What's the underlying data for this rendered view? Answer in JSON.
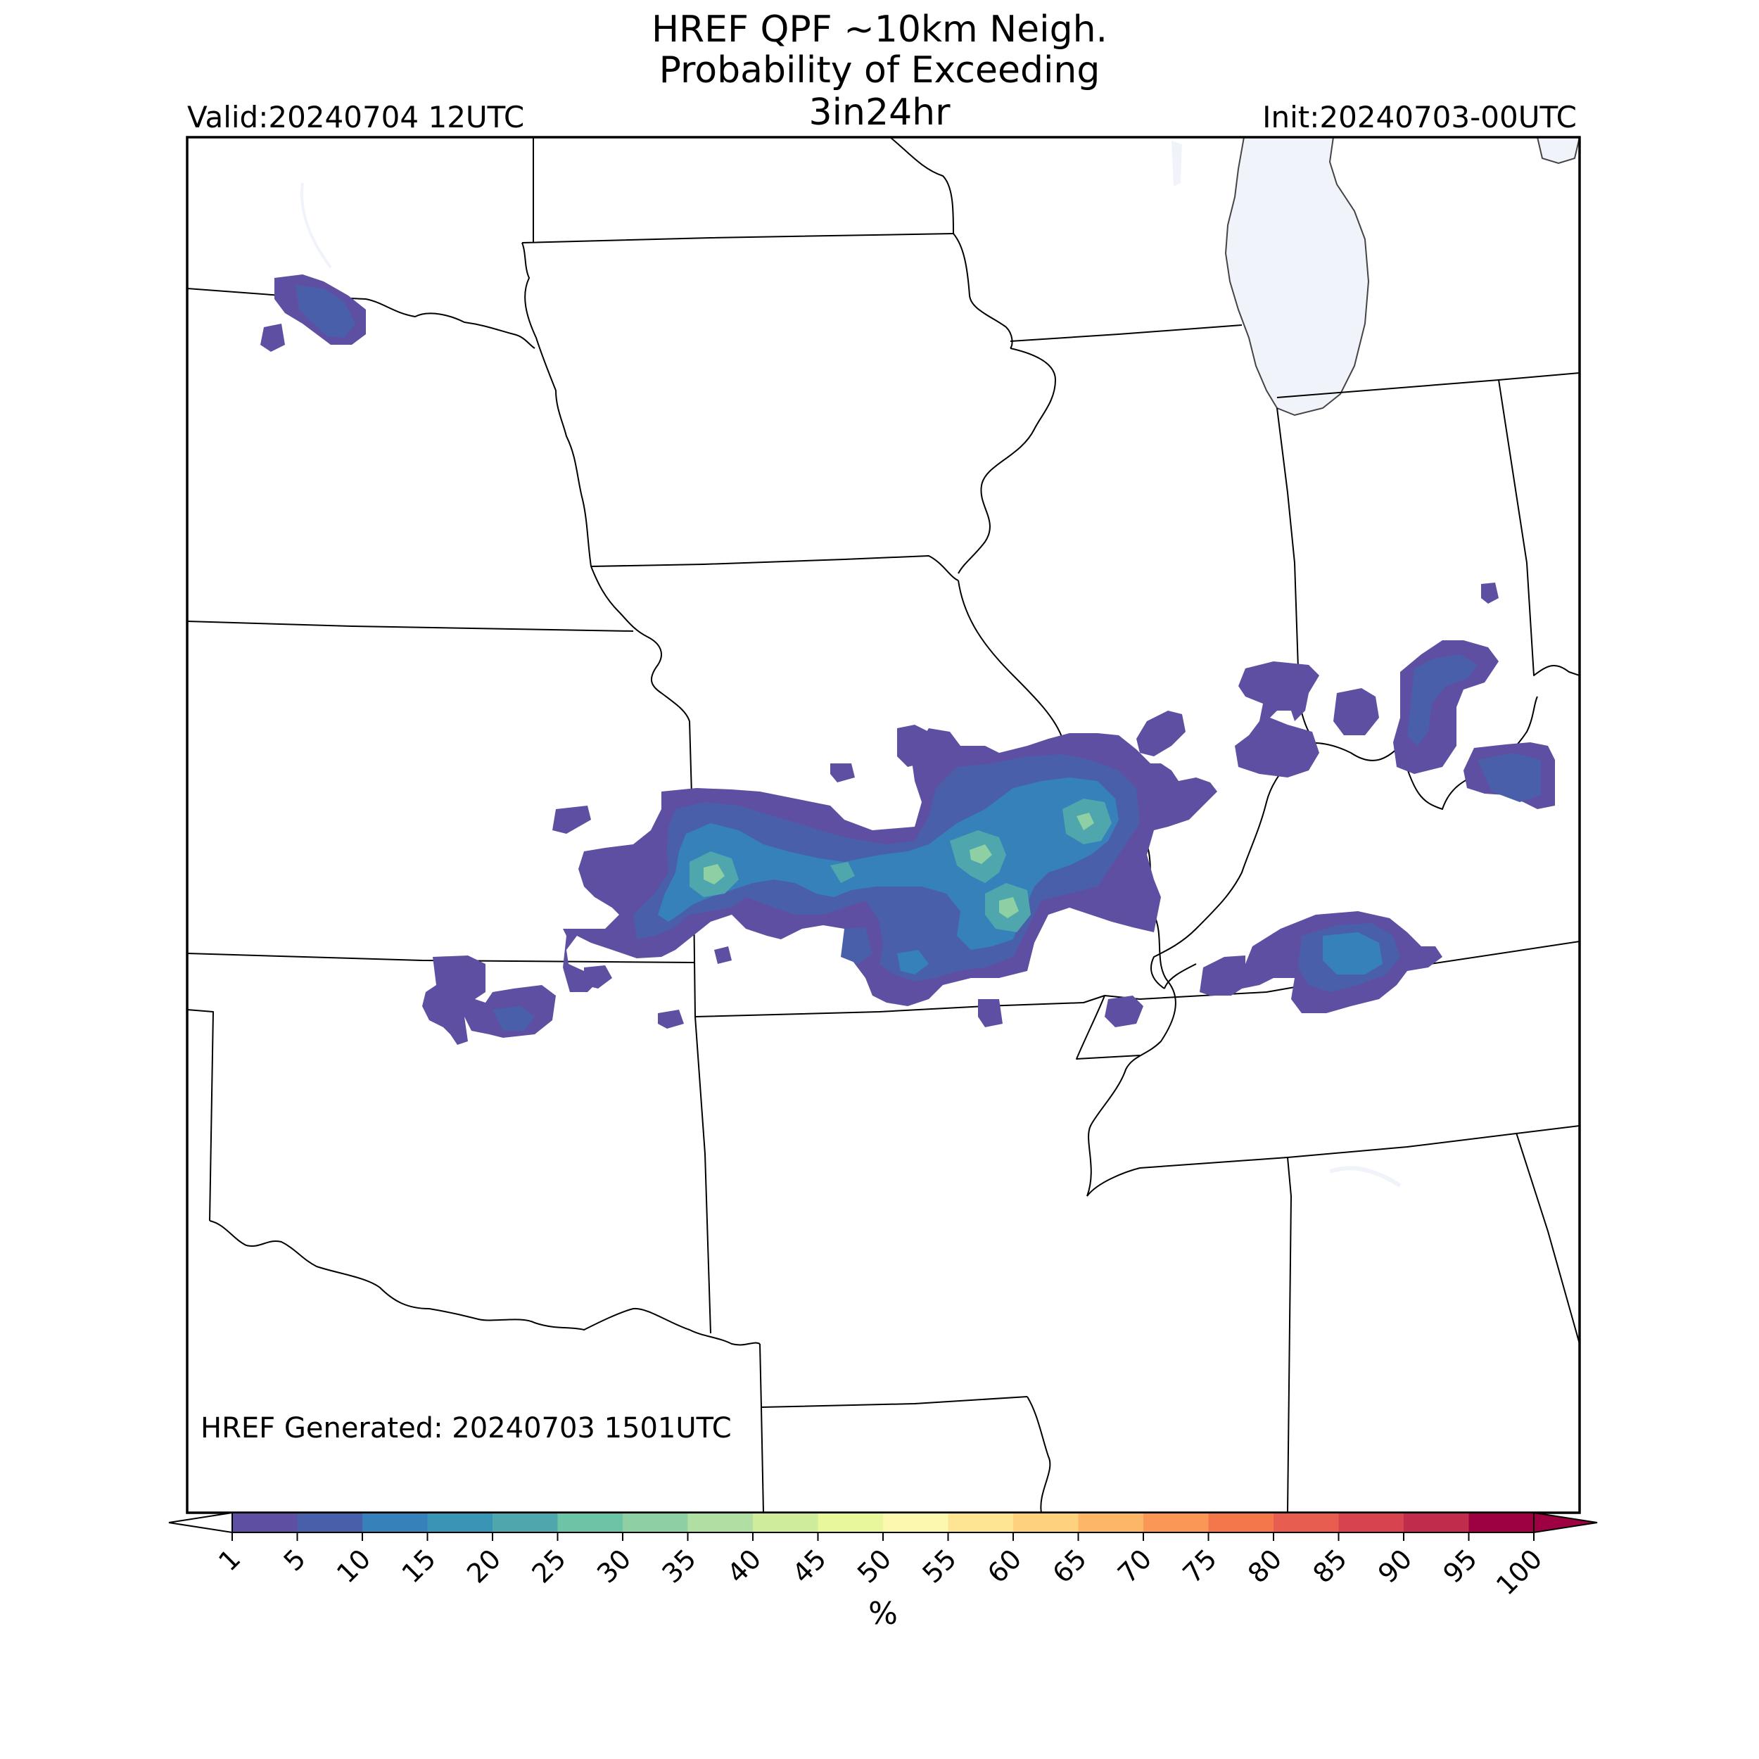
{
  "title_lines": [
    "HREF QPF ~10km Neigh.",
    "Probability of Exceeding",
    "3in24hr"
  ],
  "valid_label": "Valid:20240704 12UTC",
  "init_label": "Init:20240703-00UTC",
  "generated_label": "HREF Generated: 20240703 1501UTC",
  "colorbar": {
    "unit_label": "%",
    "tick_labels": [
      "1",
      "5",
      "10",
      "15",
      "20",
      "25",
      "30",
      "35",
      "40",
      "45",
      "50",
      "55",
      "60",
      "65",
      "70",
      "75",
      "80",
      "85",
      "90",
      "95",
      "100"
    ],
    "colors": [
      "#5e4fa2",
      "#4a5faa",
      "#3681b9",
      "#3a94b5",
      "#4fa7ad",
      "#6cc3a5",
      "#8ed0a4",
      "#b1dea3",
      "#cfec9d",
      "#e8f69c",
      "#fcf8b0",
      "#fee593",
      "#fed17e",
      "#fdb567",
      "#fa9656",
      "#f4774b",
      "#e75d4f",
      "#d7434f",
      "#c02c4b",
      "#9e0142"
    ],
    "extend": "both"
  },
  "map": {
    "land_color": "#ffffff",
    "water_color": "#f0f4fa",
    "border_color": "#000000"
  },
  "probability_areas": [
    {
      "level": "1-5",
      "desc": "central-band"
    },
    {
      "level": "5-10",
      "desc": "central-band"
    },
    {
      "level": "10-15",
      "desc": "central-band"
    },
    {
      "level": "15-30",
      "desc": "central-band"
    },
    {
      "level": "30-40",
      "desc": "central-band"
    }
  ]
}
